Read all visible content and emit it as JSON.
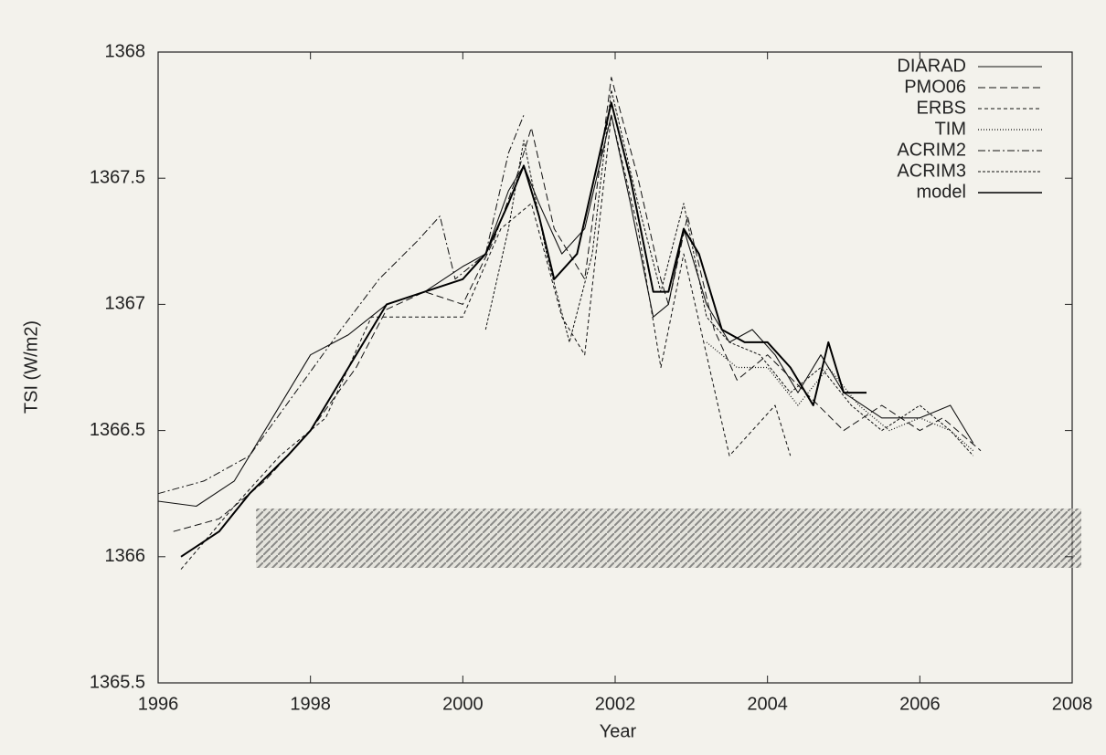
{
  "chart_data": {
    "type": "line",
    "xlabel": "Year",
    "ylabel": "TSI (W/m2)",
    "xlim": [
      1996,
      2008
    ],
    "xticks": [
      1996,
      1998,
      2000,
      2002,
      2004,
      2006,
      2008
    ],
    "ylim": [
      1365.5,
      1368
    ],
    "yticks": [
      1365.5,
      1366,
      1366.5,
      1367,
      1367.5,
      1368
    ],
    "legend": "upper right",
    "series": [
      {
        "name": "DIARAD",
        "color": "#111111",
        "dash": "none",
        "width": 1.1,
        "x": [
          1996,
          1996.5,
          1997,
          1997.5,
          1998,
          1998.5,
          1999,
          1999.5,
          2000,
          2000.3,
          2000.6,
          2000.8,
          2001,
          2001.3,
          2001.6,
          2001.95,
          2002.2,
          2002.5,
          2002.7,
          2002.9,
          2003.2,
          2003.5,
          2003.8,
          2004.1,
          2004.4,
          2004.7,
          2005,
          2005.5,
          2006,
          2006.4,
          2006.7
        ],
        "values": [
          1366.22,
          1366.2,
          1366.3,
          1366.55,
          1366.8,
          1366.88,
          1367.0,
          1367.05,
          1367.15,
          1367.2,
          1367.45,
          1367.55,
          1367.4,
          1367.2,
          1367.3,
          1367.75,
          1367.4,
          1366.95,
          1367.0,
          1367.3,
          1367.0,
          1366.85,
          1366.9,
          1366.8,
          1366.65,
          1366.8,
          1366.65,
          1366.55,
          1366.55,
          1366.6,
          1366.45
        ]
      },
      {
        "name": "PMO06",
        "color": "#111111",
        "dash": "8 4",
        "width": 1,
        "x": [
          1996.2,
          1996.8,
          1997.4,
          1998,
          1998.6,
          1999,
          1999.5,
          2000,
          2000.4,
          2000.7,
          2000.9,
          2001.2,
          2001.6,
          2001.8,
          2001.95,
          2002.3,
          2002.6,
          2002.7,
          2002.95,
          2003.3,
          2003.6,
          2004,
          2004.5,
          2005,
          2005.5,
          2006,
          2006.3,
          2006.8
        ],
        "values": [
          1366.1,
          1366.15,
          1366.3,
          1366.5,
          1366.75,
          1366.98,
          1367.05,
          1367.0,
          1367.25,
          1367.5,
          1367.7,
          1367.3,
          1367.1,
          1367.55,
          1367.9,
          1367.5,
          1367.1,
          1367.0,
          1367.35,
          1366.9,
          1366.7,
          1366.8,
          1366.65,
          1366.5,
          1366.6,
          1366.5,
          1366.55,
          1366.42
        ]
      },
      {
        "name": "ERBS",
        "color": "#111111",
        "dash": "4 3",
        "width": 1,
        "x": [
          1996.3,
          1997,
          1997.6,
          1998.2,
          1998.8,
          1999.4,
          2000,
          2000.5,
          2000.9,
          2001.3,
          2001.6,
          2001.95,
          2002.3,
          2002.6,
          2002.9,
          2003.2,
          2003.5,
          2003.8,
          2004.1,
          2004.3
        ],
        "values": [
          1365.95,
          1366.2,
          1366.4,
          1366.55,
          1366.95,
          1366.95,
          1366.95,
          1367.3,
          1367.4,
          1366.95,
          1366.8,
          1367.75,
          1367.3,
          1366.75,
          1367.2,
          1366.8,
          1366.4,
          1366.5,
          1366.6,
          1366.4
        ]
      },
      {
        "name": "TIM",
        "color": "#111111",
        "dash": "1 2",
        "width": 1.2,
        "x": [
          2003.2,
          2003.6,
          2004,
          2004.4,
          2004.8,
          2005.2,
          2005.6,
          2006,
          2006.4,
          2006.7
        ],
        "values": [
          1366.85,
          1366.75,
          1366.75,
          1366.6,
          1366.75,
          1366.6,
          1366.5,
          1366.55,
          1366.5,
          1366.42
        ]
      },
      {
        "name": "ACRIM2",
        "color": "#111111",
        "dash": "8 3 2 3",
        "width": 1,
        "x": [
          1996,
          1996.6,
          1997.2,
          1997.8,
          1998.4,
          1998.9,
          1999.4,
          1999.7,
          1999.9,
          2000.3,
          2000.6,
          2000.8
        ],
        "values": [
          1366.25,
          1366.3,
          1366.4,
          1366.65,
          1366.9,
          1367.1,
          1367.25,
          1367.35,
          1367.1,
          1367.2,
          1367.6,
          1367.75
        ]
      },
      {
        "name": "ACRIM3",
        "color": "#111111",
        "dash": "3 2",
        "width": 1,
        "x": [
          2000.3,
          2000.6,
          2000.8,
          2001.1,
          2001.4,
          2001.7,
          2001.95,
          2002.3,
          2002.6,
          2002.9,
          2003.2,
          2003.5,
          2003.9,
          2004.3,
          2004.7,
          2005.1,
          2005.5,
          2006,
          2006.4,
          2006.7
        ],
        "values": [
          1366.9,
          1367.3,
          1367.65,
          1367.2,
          1366.85,
          1367.2,
          1367.85,
          1367.4,
          1367.05,
          1367.4,
          1366.95,
          1366.85,
          1366.8,
          1366.65,
          1366.75,
          1366.6,
          1366.5,
          1366.6,
          1366.5,
          1366.4
        ]
      },
      {
        "name": "model",
        "color": "#000000",
        "dash": "none",
        "width": 2,
        "x": [
          1996.3,
          1996.8,
          1997.2,
          1997.7,
          1998,
          1998.5,
          1999,
          1999.5,
          2000,
          2000.3,
          2000.6,
          2000.8,
          2001,
          2001.2,
          2001.5,
          2001.8,
          2001.95,
          2002.2,
          2002.5,
          2002.7,
          2002.9,
          2003.1,
          2003.4,
          2003.7,
          2004,
          2004.3,
          2004.6,
          2004.8,
          2005,
          2005.3
        ],
        "values": [
          1366.0,
          1366.1,
          1366.25,
          1366.4,
          1366.5,
          1366.75,
          1367.0,
          1367.05,
          1367.1,
          1367.2,
          1367.4,
          1367.55,
          1367.35,
          1367.1,
          1367.2,
          1367.6,
          1367.8,
          1367.5,
          1367.05,
          1367.05,
          1367.3,
          1367.2,
          1366.9,
          1366.85,
          1366.85,
          1366.75,
          1366.6,
          1366.85,
          1366.65,
          1366.65
        ]
      }
    ]
  }
}
